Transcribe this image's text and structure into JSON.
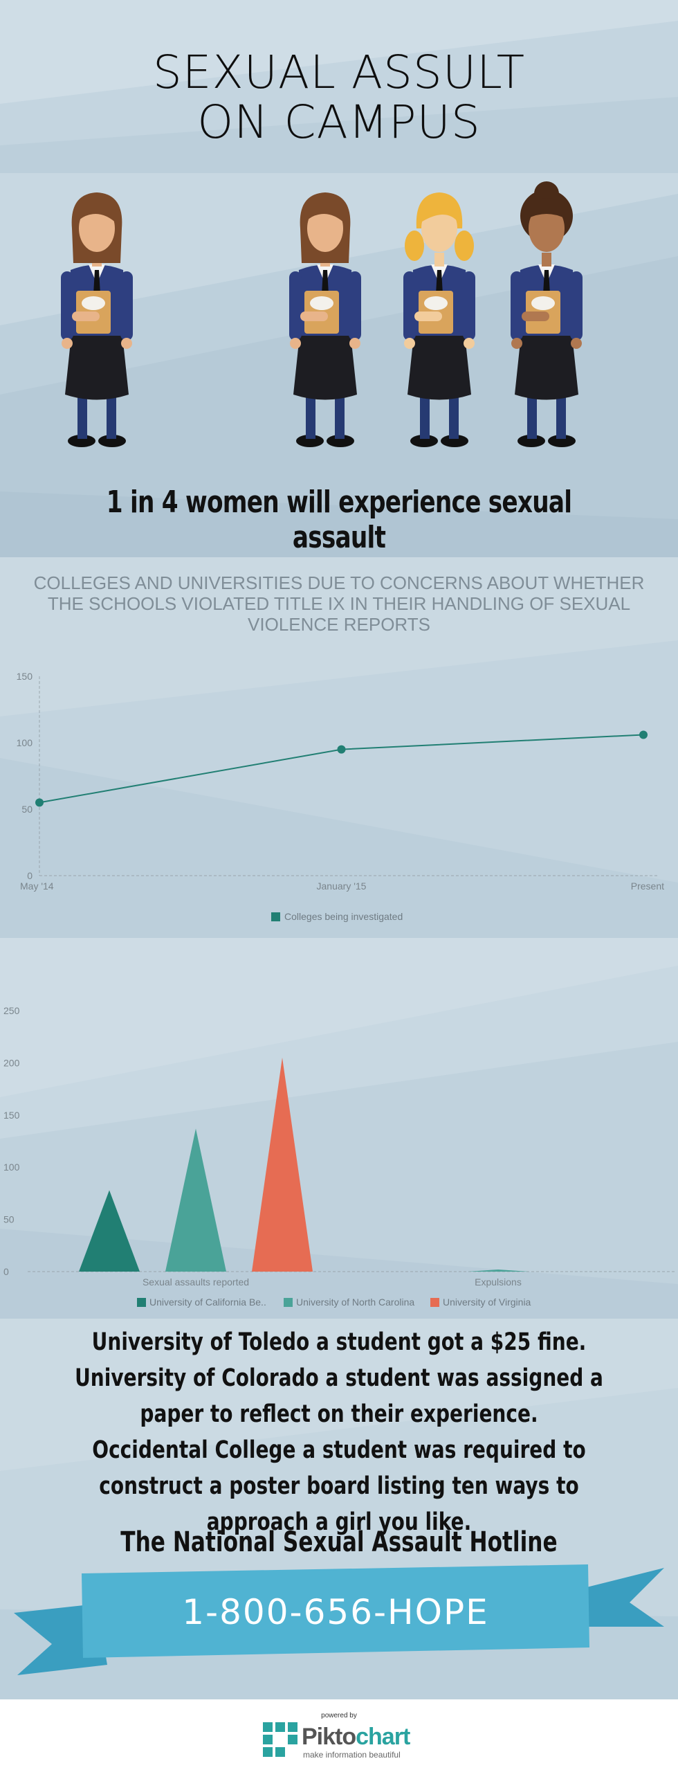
{
  "header": {
    "title_line1": "SEXUAL ASSULT",
    "title_line2": "ON CAMPUS"
  },
  "illustration": {
    "figures": [
      "student-brown-hair",
      "student-brown-hair",
      "student-blonde-hair",
      "student-dark-skin"
    ]
  },
  "statistic": "1 in 4 women will experience sexual assault",
  "colors": {
    "teal_dark": "#217f73",
    "teal_light": "#4aa398",
    "coral": "#e66c53",
    "ribbon": "#50b3d2",
    "ribbon_dark": "#3a9ec0"
  },
  "chart_data": [
    {
      "type": "line",
      "title": "COLLEGES AND UNIVERSITIES DUE TO CONCERNS ABOUT WHETHER THE SCHOOLS VIOLATED TITLE IX IN THEIR HANDLING OF SEXUAL VIOLENCE REPORTS",
      "x": [
        "May '14",
        "January '15",
        "Present"
      ],
      "series": [
        {
          "name": "Colleges being investigated",
          "values": [
            55,
            95,
            106
          ],
          "color": "#217f73"
        }
      ],
      "ylim": [
        0,
        150
      ],
      "yticks": [
        "0",
        "50",
        "100",
        "150"
      ],
      "grid": false,
      "legend": "bottom"
    },
    {
      "type": "bar",
      "categories": [
        "Sexual assaults reported",
        "Expulsions"
      ],
      "series": [
        {
          "name": "University of California Be..",
          "values": [
            78,
            0
          ],
          "color": "#217f73"
        },
        {
          "name": "University of North Carolina",
          "values": [
            137,
            2
          ],
          "color": "#4aa398"
        },
        {
          "name": "University of Virginia",
          "values": [
            205,
            0
          ],
          "color": "#e66c53"
        }
      ],
      "ylim": [
        0,
        250
      ],
      "yticks": [
        "0",
        "50",
        "100",
        "150",
        "200",
        "250"
      ],
      "grid": false,
      "legend": "bottom"
    }
  ],
  "stories": [
    "University of Toledo a student got a $25 fine.",
    "University of Colorado a student was assigned a paper to reflect on their experience.",
    "Occidental College a student was required to construct a poster board listing ten ways to approach a girl you like."
  ],
  "hotline": {
    "label": "The National Sexual Assault Hotline",
    "phone": "1-800-656-HOPE"
  },
  "footer": {
    "powered_by": "powered by",
    "brand_piktos": "Pikto",
    "brand_chart": "chart",
    "tagline": "make information beautiful"
  }
}
